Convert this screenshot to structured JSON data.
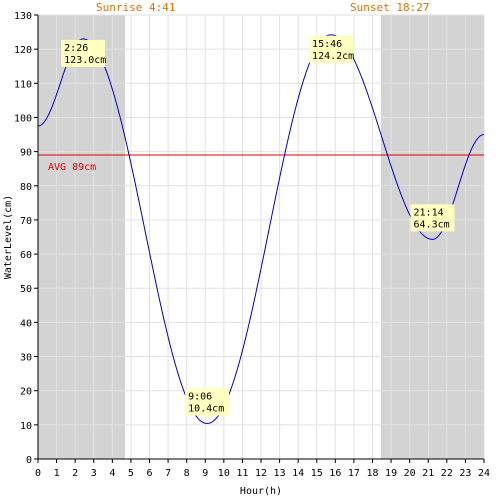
{
  "chart_data": {
    "type": "line",
    "xlabel": "Hour(h)",
    "ylabel": "WaterLevel(cm)",
    "xlim": [
      0,
      24
    ],
    "ylim": [
      0,
      130
    ],
    "x_ticks": [
      0,
      1,
      2,
      3,
      4,
      5,
      6,
      7,
      8,
      9,
      10,
      11,
      12,
      13,
      14,
      15,
      16,
      17,
      18,
      19,
      20,
      21,
      22,
      23,
      24
    ],
    "y_ticks": [
      0,
      10,
      20,
      30,
      40,
      50,
      60,
      70,
      80,
      90,
      100,
      110,
      120,
      130
    ],
    "grid": true,
    "sunrise": {
      "label": "Sunrise 4:41",
      "hour": 4.683
    },
    "sunset": {
      "label": "Sunset 18:27",
      "hour": 18.45
    },
    "average": {
      "label": "AVG 89cm",
      "value": 89,
      "color": "#dd0000"
    },
    "series": [
      {
        "color": "#0000cc",
        "x": [
          0,
          2.43,
          9.1,
          15.77,
          21.23,
          24
        ],
        "y": [
          97.5,
          123.0,
          10.4,
          124.2,
          64.3,
          95.0
        ]
      }
    ],
    "annotations": [
      {
        "time": "2:26",
        "level": "123.0cm",
        "x": 2.43,
        "y": 123.0
      },
      {
        "time": "9:06",
        "level": "10.4cm",
        "x": 9.1,
        "y": 10.4
      },
      {
        "time": "15:46",
        "level": "124.2cm",
        "x": 15.77,
        "y": 124.2
      },
      {
        "time": "21:14",
        "level": "64.3cm",
        "x": 21.23,
        "y": 64.3
      }
    ],
    "colors": {
      "night": "#d3d3d3",
      "grid": "#e2e2e2",
      "sun_text": "#e07000",
      "label_bg": "#ffffc0"
    }
  }
}
